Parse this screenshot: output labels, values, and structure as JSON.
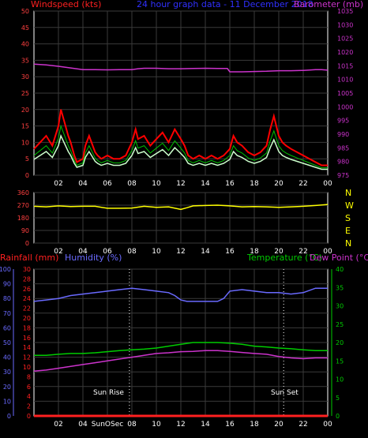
{
  "header": {
    "left_title": "Windspeed (kts)",
    "center_title": "24 hour graph data - 11 December 2018",
    "right_title": "Barometer (mb)"
  },
  "colors": {
    "background": "#000000",
    "frame": "#ffffff",
    "grid": "#3a3a3a",
    "wind_gust": "#ff0000",
    "wind_avg": "#ccffcc",
    "wind_hourly": "#00c000",
    "barometer": "#cc33cc",
    "direction": "#ffff00",
    "rainfall": "#ff2020",
    "humidity": "#6a6aff",
    "temperature": "#00cc00",
    "dewpoint": "#cc33cc",
    "sun_marker": "#ffffff",
    "left_tick_text": "#ff4040",
    "right_tick_text": "#cc33cc"
  },
  "chart_data": [
    {
      "type": "line",
      "x_ticks": [
        "02",
        "04",
        "06",
        "08",
        "10",
        "12",
        "14",
        "16",
        "18",
        "20",
        "22",
        "00"
      ],
      "ylim_left": [
        0,
        50
      ],
      "yticks_left": [
        "0",
        "5",
        "10",
        "15",
        "20",
        "25",
        "30",
        "35",
        "40",
        "45",
        "50"
      ],
      "ylim_right": [
        975,
        1035
      ],
      "yticks_right": [
        "975",
        "980",
        "985",
        "990",
        "995",
        "1000",
        "1005",
        "1010",
        "1015",
        "1020",
        "1025",
        "1030",
        "1035"
      ],
      "grid": true,
      "series": [
        {
          "name": "Windspeed (kts)",
          "axis": "left",
          "x": [
            0,
            0.5,
            1,
            1.5,
            2,
            2.2,
            2.5,
            2.8,
            3,
            3.3,
            3.5,
            4,
            4.2,
            4.5,
            5,
            5.2,
            5.5,
            6,
            6.5,
            7,
            7.5,
            8,
            8.3,
            8.5,
            9,
            9.5,
            10,
            10.5,
            11,
            11.5,
            12,
            12.3,
            12.6,
            13,
            13.5,
            14,
            14.5,
            15,
            15.5,
            16,
            16.3,
            16.6,
            17,
            17.5,
            18,
            18.5,
            19,
            19.3,
            19.6,
            20,
            20.3,
            20.6,
            21,
            21.5,
            22,
            22.5,
            23,
            23.5,
            24
          ],
          "y": [
            8,
            10,
            12,
            9,
            15,
            20,
            16,
            12,
            10,
            6,
            4,
            5,
            9,
            12,
            7,
            6,
            5,
            6,
            5,
            5,
            6,
            10,
            14,
            11,
            12,
            9,
            11,
            13,
            10,
            14,
            11,
            9,
            6,
            5,
            6,
            5,
            6,
            5,
            6,
            8,
            12,
            10,
            9,
            7,
            6,
            7,
            9,
            14,
            18,
            12,
            10,
            9,
            8,
            7,
            6,
            5,
            4,
            3,
            3
          ]
        },
        {
          "name": "Barometer (mb)",
          "axis": "right",
          "x": [
            0,
            1,
            2,
            3,
            4,
            5,
            6,
            7,
            8,
            8.5,
            9,
            10,
            11,
            12,
            13,
            14,
            15,
            15.8,
            16,
            17,
            18,
            19,
            20,
            21,
            22,
            23,
            23.5,
            24
          ],
          "y": [
            1015.6,
            1015.3,
            1014.8,
            1014.2,
            1013.6,
            1013.6,
            1013.5,
            1013.6,
            1013.6,
            1013.9,
            1014.1,
            1014.1,
            1013.9,
            1013.9,
            1014.0,
            1014.1,
            1014.0,
            1014.0,
            1012.8,
            1012.8,
            1012.9,
            1013.0,
            1013.2,
            1013.2,
            1013.3,
            1013.6,
            1013.6,
            1013.4
          ]
        }
      ]
    },
    {
      "type": "line",
      "x_ticks": [
        "02",
        "04",
        "06",
        "08",
        "10",
        "12",
        "14",
        "16",
        "18",
        "20",
        "22",
        "00"
      ],
      "ylim_left": [
        0,
        360
      ],
      "yticks_left": [
        "0",
        "30",
        "60",
        "90",
        "120",
        "150",
        "180",
        "210",
        "240",
        "270",
        "300",
        "330",
        "360"
      ],
      "right_labels": [
        "N",
        "W",
        "S",
        "E",
        "N"
      ],
      "grid": true,
      "series": [
        {
          "name": "Wind direction",
          "axis": "left",
          "x": [
            0,
            1,
            2,
            3,
            4,
            5,
            6,
            7,
            8,
            9,
            10,
            11,
            12,
            12.5,
            13,
            14,
            15,
            16,
            17,
            18,
            19,
            20,
            21,
            22,
            23,
            24
          ],
          "y": [
            262,
            258,
            265,
            260,
            262,
            262,
            248,
            248,
            250,
            262,
            255,
            258,
            240,
            252,
            265,
            268,
            270,
            265,
            258,
            260,
            258,
            255,
            258,
            262,
            268,
            275
          ]
        }
      ]
    },
    {
      "type": "line",
      "x_ticks": [
        "02",
        "04",
        "SunOSec",
        "08",
        "10",
        "12",
        "14",
        "16",
        "18",
        "20",
        "22",
        "00"
      ],
      "ylim_left": [
        0,
        100
      ],
      "yticks_left_humidity": [
        "0",
        "10",
        "20",
        "30",
        "40",
        "50",
        "60",
        "70",
        "80",
        "90",
        "100"
      ],
      "yticks_left_rainfall": [
        "0",
        "2",
        "4",
        "6",
        "8",
        "10",
        "12",
        "14",
        "16",
        "18",
        "20",
        "22",
        "24",
        "26",
        "28",
        "30"
      ],
      "ylim_right": [
        0,
        40
      ],
      "yticks_right": [
        "0",
        "5",
        "10",
        "15",
        "20",
        "25",
        "30",
        "35",
        "40"
      ],
      "labels": {
        "rainfall": "Rainfall (mm)",
        "humidity": "Humidity (%)",
        "temperature": "Temperature (°C)",
        "dewpoint": "Dew Point (°C)"
      },
      "annotations": [
        {
          "text": "Sun Rise",
          "x": 7.8
        },
        {
          "text": "Sun Set",
          "x": 20.4
        }
      ],
      "grid": true,
      "series": [
        {
          "name": "Humidity (%)",
          "axis": "left",
          "x": [
            0,
            1,
            2,
            3,
            4,
            5,
            6,
            7,
            8,
            9,
            10,
            11,
            11.5,
            12,
            12.5,
            13,
            14,
            15,
            15.5,
            16,
            17,
            18,
            19,
            20,
            21,
            22,
            23,
            24
          ],
          "y": [
            78,
            79,
            80,
            82,
            83,
            84,
            85,
            86,
            87,
            86,
            85,
            84,
            82,
            79,
            78,
            78,
            78,
            78,
            80,
            85,
            86,
            85,
            84,
            84,
            83,
            84,
            87,
            87
          ]
        },
        {
          "name": "Temperature (°C)",
          "axis": "right",
          "x": [
            0,
            1,
            2,
            3,
            4,
            5,
            6,
            7,
            8,
            9,
            10,
            11,
            12,
            13,
            14,
            15,
            16,
            17,
            18,
            19,
            20,
            21,
            22,
            23,
            24
          ],
          "y": [
            16.5,
            16.5,
            16.8,
            17,
            17,
            17.2,
            17.5,
            17.8,
            18,
            18.2,
            18.5,
            19,
            19.5,
            20,
            20,
            20,
            19.8,
            19.5,
            19,
            18.8,
            18.5,
            18.3,
            18,
            17.8,
            17.8
          ]
        },
        {
          "name": "Dew Point (°C)",
          "axis": "right",
          "x": [
            0,
            1,
            2,
            3,
            4,
            5,
            6,
            7,
            8,
            9,
            10,
            11,
            12,
            13,
            14,
            15,
            16,
            17,
            18,
            19,
            20,
            21,
            22,
            23,
            24
          ],
          "y": [
            12.2,
            12.5,
            13,
            13.5,
            14,
            14.5,
            15,
            15.5,
            16,
            16.5,
            17,
            17.2,
            17.5,
            17.6,
            17.8,
            17.8,
            17.6,
            17.3,
            17,
            16.8,
            16.2,
            15.8,
            15.6,
            15.8,
            15.8
          ]
        },
        {
          "name": "Rainfall (mm)",
          "axis": "left",
          "x": [
            0,
            24
          ],
          "y": [
            0,
            0
          ]
        }
      ]
    }
  ]
}
